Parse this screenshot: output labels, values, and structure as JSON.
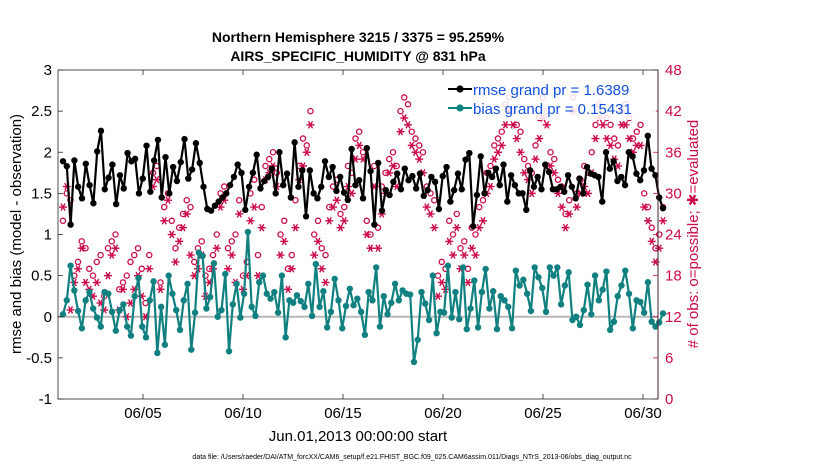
{
  "chart_data": {
    "type": "line",
    "title_lines": [
      "Northern Hemisphere 3215 / 3375 = 95.259%",
      "AIRS_SPECIFIC_HUMIDITY @ 831 hPa"
    ],
    "xlabel": "Jun.01,2013 00:00:00 start",
    "ylabel_left": "rmse and bias (model - observation)",
    "ylabel_right": "# of obs: o=possible; ✱=evaluated",
    "footer": "data file: /Users/raeder/DAI/ATM_forcXX/CAM6_setup/f.e21.FHIST_BGC.f09_025.CAM6assim.011/Diags_NTrS_2013-06/obs_diag_output.nc",
    "xlim": [
      0.75,
      30.75
    ],
    "ylim_left": [
      -1,
      3
    ],
    "ylim_right": [
      0,
      48
    ],
    "x_ticks": [
      5,
      10,
      15,
      20,
      25,
      30
    ],
    "x_tick_labels": [
      "06/05",
      "06/10",
      "06/15",
      "06/20",
      "06/25",
      "06/30"
    ],
    "y_left_ticks": [
      -1,
      -0.5,
      0,
      0.5,
      1,
      1.5,
      2,
      2.5,
      3
    ],
    "y_left_tick_labels": [
      "-1",
      "-0.5",
      "0",
      "0.5",
      "1",
      "1.5",
      "2",
      "2.5",
      "3"
    ],
    "y_right_ticks": [
      0,
      6,
      12,
      18,
      24,
      30,
      36,
      42,
      48
    ],
    "y_right_tick_labels": [
      "0",
      "6",
      "12",
      "18",
      "24",
      "30",
      "36",
      "42",
      "48"
    ],
    "legend": [
      {
        "label": "rmse grand pr = 1.6389",
        "color": "#000000"
      },
      {
        "label": "bias grand pr = 0.15431",
        "color": "#108080"
      }
    ],
    "colors": {
      "rmse": "#000000",
      "bias": "#108080",
      "obs": "#cc0a4a",
      "zero": "#b8b8b8",
      "legend_text": "#1050e0"
    },
    "series": [
      {
        "name": "rmse",
        "values": [
          1.89,
          1.83,
          1.12,
          1.9,
          1.58,
          1.44,
          1.86,
          1.6,
          1.38,
          2.01,
          2.26,
          1.55,
          1.69,
          1.85,
          1.37,
          1.72,
          1.56,
          1.99,
          1.89,
          1.92,
          1.5,
          1.68,
          2.08,
          1.52,
          1.9,
          2.15,
          1.45,
          1.94,
          1.5,
          1.82,
          1.65,
          1.88,
          2.16,
          1.68,
          1.79,
          2.11,
          1.87,
          1.58,
          1.31,
          1.29,
          1.35,
          1.4,
          1.45,
          1.5,
          1.6,
          1.7,
          1.85,
          1.75,
          1.3,
          1.58,
          1.75,
          1.97,
          1.56,
          1.65,
          1.7,
          1.8,
          1.5,
          2.0,
          1.6,
          1.74,
          1.45,
          2.12,
          1.58,
          1.78,
          1.22,
          1.78,
          1.5,
          1.44,
          1.58,
          1.89,
          1.7,
          1.82,
          1.53,
          1.7,
          1.51,
          1.42,
          2.04,
          1.6,
          1.66,
          1.44,
          2.05,
          1.77,
          1.12,
          1.87,
          1.29,
          1.54,
          1.48,
          1.64,
          1.74,
          1.55,
          1.8,
          1.66,
          1.71,
          1.56,
          1.74,
          1.47,
          1.54,
          1.7,
          1.64,
          1.31,
          1.71,
          1.82,
          1.4,
          1.54,
          1.74,
          1.55,
          1.91,
          1.99,
          1.1,
          1.48,
          1.95,
          1.5,
          1.75,
          1.7,
          1.8,
          1.6,
          1.85,
          1.4,
          1.72,
          1.6,
          1.5,
          1.5,
          1.3,
          1.78,
          1.58,
          1.7,
          1.55,
          1.85,
          1.76,
          1.55,
          1.55,
          1.58,
          1.52,
          1.72,
          1.58,
          1.44,
          1.68,
          1.5,
          1.82,
          1.74,
          1.72,
          1.7,
          1.4,
          2.0,
          1.8,
          1.89,
          1.65,
          1.7,
          1.6,
          2.0,
          1.95,
          1.74,
          1.66,
          1.78,
          2.2,
          1.8,
          1.72,
          1.45,
          1.32
        ],
        "color": "#000000"
      },
      {
        "name": "bias",
        "values": [
          0.03,
          0.2,
          0.62,
          0.32,
          0.07,
          -0.14,
          0.2,
          0.3,
          0.1,
          -0.01,
          -0.12,
          0.3,
          0.28,
          0.06,
          -0.17,
          0.08,
          0.15,
          -0.12,
          -0.23,
          0.25,
          0.47,
          -0.12,
          -0.25,
          0.2,
          0.43,
          -0.44,
          0.12,
          -0.34,
          0.5,
          0.28,
          0.08,
          -0.16,
          0.2,
          0.4,
          -0.4,
          0.05,
          0.78,
          0.74,
          0.1,
          0.24,
          0.65,
          0.0,
          0.08,
          0.52,
          -0.42,
          0.15,
          0.4,
          -0.01,
          0.28,
          1.03,
          0.12,
          0.01,
          0.42,
          0.5,
          0.28,
          0.22,
          0.3,
          0.05,
          0.5,
          -0.25,
          0.2,
          0.17,
          0.26,
          0.19,
          0.12,
          0.4,
          0.01,
          0.64,
          0.12,
          0.31,
          -0.13,
          0.06,
          0.46,
          0.2,
          -0.14,
          0.13,
          0.34,
          0.14,
          0.22,
          0.06,
          -0.22,
          0.3,
          0.2,
          0.6,
          -0.12,
          0.25,
          0.03,
          0.17,
          0.4,
          0.2,
          0.32,
          0.28,
          0.27,
          -0.55,
          -0.28,
          0.3,
          0.16,
          -0.04,
          0.5,
          -0.2,
          0.06,
          0.05,
          0.62,
          -0.01,
          0.3,
          -0.03,
          0.6,
          -0.15,
          0.1,
          0.44,
          -0.13,
          0.3,
          0.58,
          0.1,
          0.31,
          -0.15,
          0.25,
          0.2,
          0.12,
          -0.14,
          0.56,
          0.38,
          0.45,
          0.28,
          0.07,
          0.6,
          0.48,
          0.35,
          0.06,
          0.6,
          0.5,
          0.6,
          0.15,
          0.38,
          0.54,
          -0.04,
          0.0,
          -0.1,
          0.08,
          0.39,
          0.03,
          0.5,
          0.2,
          0.33,
          0.55,
          -0.16,
          -0.06,
          0.25,
          0.38,
          0.56,
          0.28,
          -0.14,
          0.2,
          0.18,
          0.05,
          0.42,
          -0.06,
          -0.12,
          -0.07,
          0.04
        ],
        "color": "#108080"
      },
      {
        "name": "obs_possible",
        "values": [
          26,
          30,
          29,
          18,
          20,
          23,
          22,
          19,
          18,
          20,
          21,
          15,
          22,
          23,
          24,
          16,
          17,
          18,
          20,
          21,
          22,
          19,
          14,
          21,
          33,
          34,
          17,
          28,
          30,
          26,
          22,
          25,
          27,
          29,
          28,
          20,
          22,
          23,
          18,
          19,
          21,
          24,
          30,
          31,
          22,
          23,
          24,
          29,
          18,
          20,
          30,
          32,
          21,
          28,
          34,
          35,
          36,
          33,
          24,
          26,
          19,
          21,
          29,
          34,
          38,
          37,
          42,
          24,
          26,
          22,
          21,
          28,
          31,
          32,
          27,
          28,
          34,
          33,
          38,
          39,
          36,
          26,
          24,
          34,
          25,
          31,
          33,
          35,
          36,
          34,
          42,
          44,
          43,
          39,
          38,
          37,
          36,
          31,
          30,
          29,
          18,
          20,
          19,
          26,
          24,
          27,
          22,
          23,
          19,
          25,
          24,
          28,
          29,
          33,
          34,
          37,
          38,
          39,
          43,
          44,
          42,
          40,
          39,
          35,
          34,
          33,
          37,
          41,
          44,
          42,
          36,
          35,
          32,
          31,
          27,
          29,
          44,
          30,
          32,
          34,
          33,
          36,
          40,
          43,
          42,
          41,
          40,
          38,
          37,
          42,
          43,
          41,
          38,
          39,
          40,
          30,
          28,
          25,
          22,
          24,
          28
        ],
        "color": "#cc0a4a"
      },
      {
        "name": "obs_evaluated",
        "values": [
          28,
          31,
          13,
          17,
          19,
          22,
          17,
          16,
          15,
          17,
          14,
          13,
          18,
          21,
          22,
          13,
          16,
          12,
          14,
          16,
          18,
          15,
          12,
          19,
          31,
          32,
          16,
          26,
          29,
          24,
          20,
          23,
          25,
          27,
          21,
          18,
          19,
          21,
          15,
          17,
          19,
          22,
          28,
          29,
          19,
          21,
          17,
          27,
          16,
          18,
          26,
          28,
          18,
          25,
          32,
          33,
          34,
          31,
          21,
          23,
          16,
          19,
          25,
          32,
          34,
          36,
          40,
          21,
          23,
          19,
          17,
          26,
          28,
          29,
          25,
          26,
          31,
          30,
          35,
          37,
          35,
          24,
          22,
          31,
          22,
          27,
          30,
          33,
          34,
          31,
          39,
          41,
          40,
          37,
          36,
          35,
          33,
          28,
          27,
          25,
          15,
          17,
          16,
          23,
          21,
          25,
          19,
          21,
          17,
          22,
          21,
          25,
          26,
          30,
          31,
          35,
          36,
          37,
          40,
          42,
          40,
          38,
          36,
          33,
          32,
          30,
          35,
          38,
          41,
          40,
          34,
          33,
          30,
          28,
          25,
          27,
          42,
          28,
          30,
          31,
          30,
          33,
          38,
          41,
          40,
          38,
          37,
          35,
          34,
          40,
          40,
          38,
          36,
          37,
          37,
          28,
          26,
          23,
          20,
          22,
          26
        ],
        "color": "#cc0a4a"
      }
    ]
  }
}
